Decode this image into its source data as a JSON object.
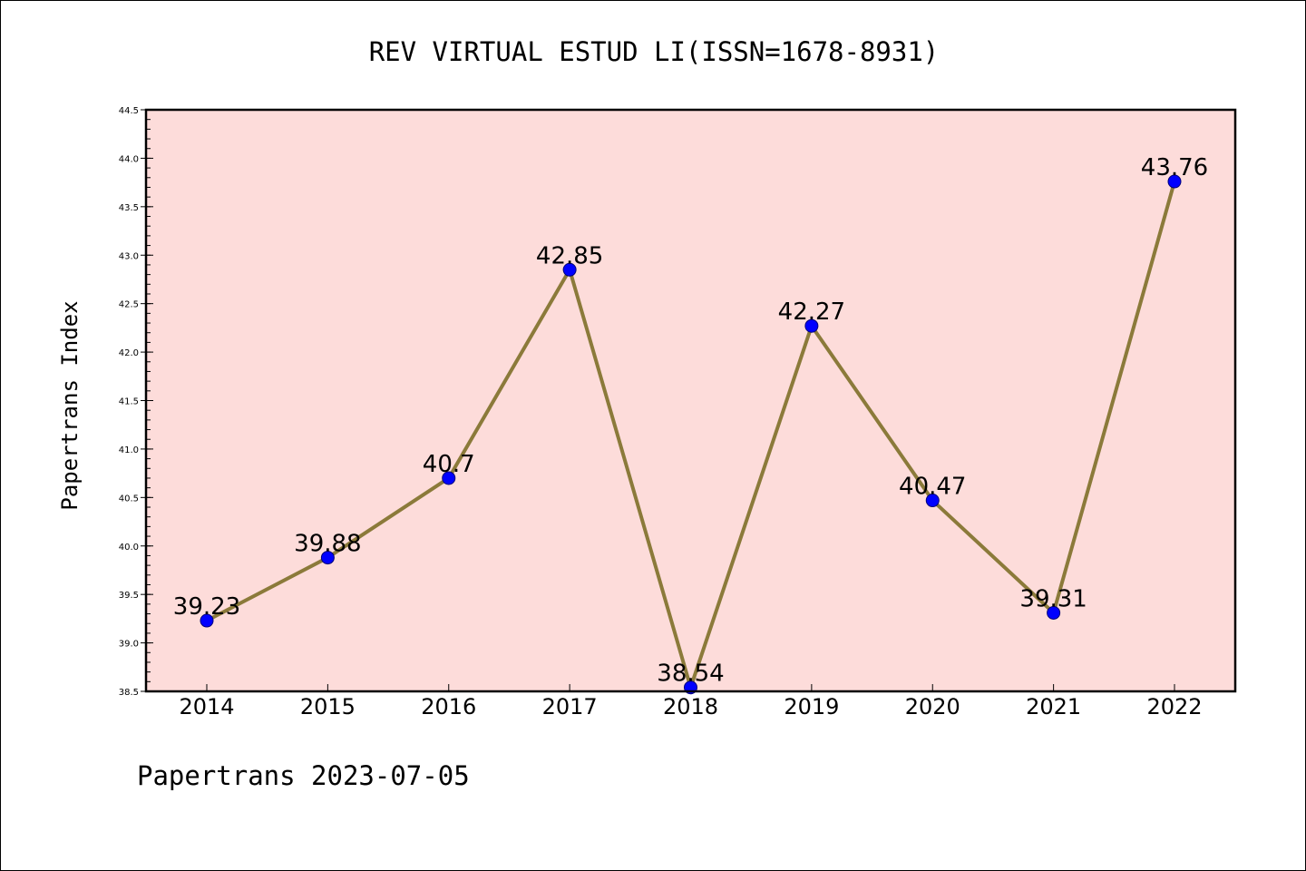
{
  "colors": {
    "plot_background": "#FDDCDA",
    "line": "#8B7A3A",
    "marker_fill": "#0000FF",
    "marker_edge": "#00007A",
    "frame": "#000000"
  },
  "footer": "Papertrans 2023-07-05",
  "chart_data": {
    "type": "line",
    "title": "REV VIRTUAL ESTUD LI(ISSN=1678-8931)",
    "xlabel": "",
    "ylabel": "Papertrans Index",
    "categories": [
      "2014",
      "2015",
      "2016",
      "2017",
      "2018",
      "2019",
      "2020",
      "2021",
      "2022"
    ],
    "series": [
      {
        "values": [
          39.23,
          39.88,
          40.7,
          42.85,
          38.54,
          42.27,
          40.47,
          39.31,
          43.76
        ]
      }
    ],
    "data_labels": [
      "39.23",
      "39.88",
      "40.7",
      "42.85",
      "38.54",
      "42.27",
      "40.47",
      "39.31",
      "43.76"
    ],
    "ylim": [
      38.5,
      44.5
    ],
    "yticks": [
      38.5,
      39.0,
      39.5,
      40.0,
      40.5,
      41.0,
      41.5,
      42.0,
      42.5,
      43.0,
      43.5,
      44.0,
      44.5
    ],
    "ytick_labels": [
      "38.5",
      "39.0",
      "39.5",
      "40.0",
      "40.5",
      "41.0",
      "41.5",
      "42.0",
      "42.5",
      "43.0",
      "43.5",
      "44.0",
      "44.5"
    ],
    "grid": false,
    "legend": "none"
  }
}
